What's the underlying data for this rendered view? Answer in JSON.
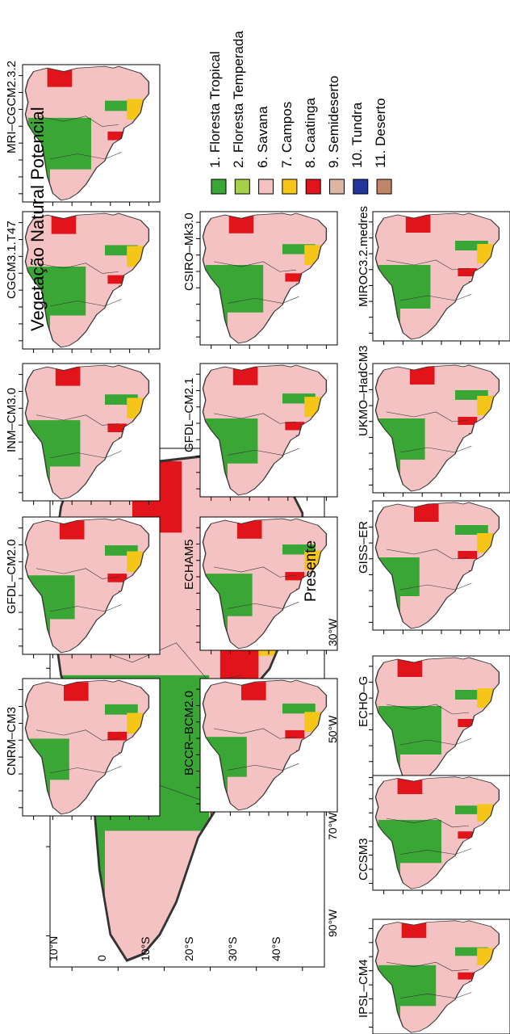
{
  "main_panel": {
    "title": "Vegetação Natural Potencial",
    "period": "Presente",
    "lat_ticks": [
      "10°N",
      "0",
      "10°S",
      "20°S",
      "30°S",
      "40°S"
    ],
    "lon_ticks": [
      "90°W",
      "70°W",
      "50°W",
      "30°W"
    ]
  },
  "models": [
    "CNRM–CM3",
    "GFDL–CM2.0",
    "INM–CM3.0",
    "CGCM3.1.T47",
    "MRI–CGCM2.3.2",
    "BCCR–BCM2.0",
    "ECHAM5",
    "GFDL–CM2.1",
    "CSIRO–Mk3.0",
    "ECHO–G",
    "GISS–ER",
    "UKMO–HadCM3",
    "MIROC3.2.medres",
    "IPSL–CM4",
    "CCSM3"
  ],
  "legend": [
    {
      "label": "1. Floresta Tropical",
      "color": "#3aa635"
    },
    {
      "label": "2. Floresta Temperada",
      "color": "#a6cf4a"
    },
    {
      "label": "6. Savana",
      "color": "#f4c2c2"
    },
    {
      "label": "7. Campos",
      "color": "#f5c518"
    },
    {
      "label": "8. Caatinga",
      "color": "#e0141a"
    },
    {
      "label": "9. Semideserto",
      "color": "#dcb5a3"
    },
    {
      "label": "10. Tundra",
      "color": "#23359b"
    },
    {
      "label": "11. Deserto",
      "color": "#c08468"
    }
  ]
}
